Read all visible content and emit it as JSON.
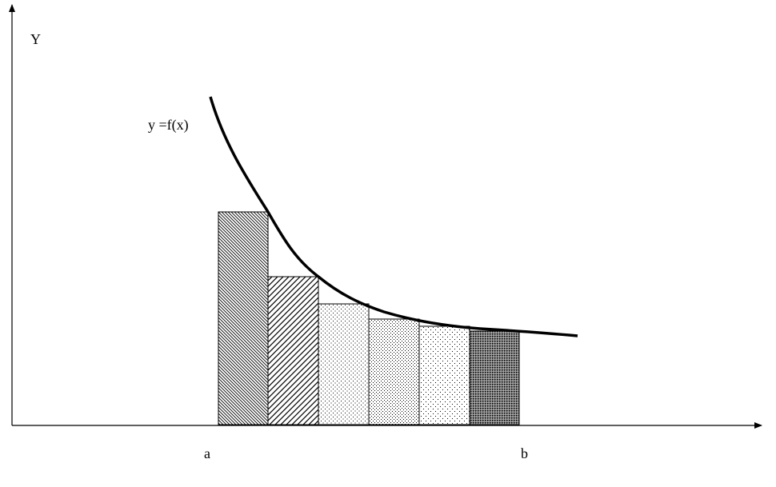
{
  "labels": {
    "y_axis": "Y",
    "curve": "y =f(x)",
    "a": "a",
    "b": "b"
  }
}
